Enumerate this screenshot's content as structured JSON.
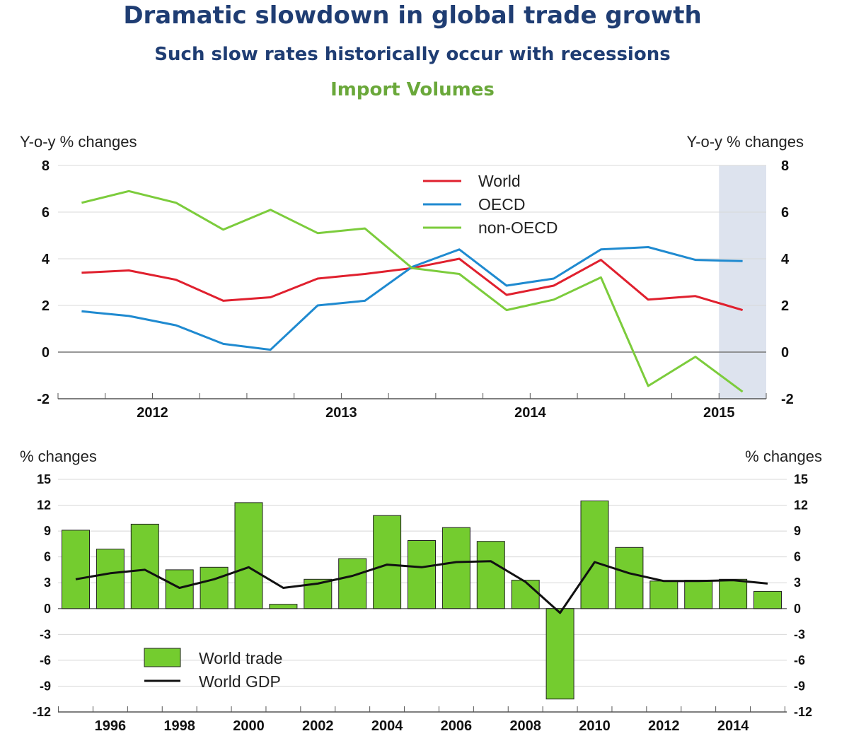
{
  "header": {
    "title": "Dramatic slowdown in global trade growth",
    "subtitle": "Such slow rates historically occur with recessions",
    "section_title": "Import Volumes"
  },
  "colors": {
    "world": "#e0202e",
    "oecd": "#1f8ad0",
    "non_oecd": "#7ccc3c",
    "bar_fill": "#74cc2f",
    "gdp_line": "#111111",
    "shade": "#dde3ee",
    "grid": "#d8d8d8"
  },
  "chart_data": [
    {
      "type": "line",
      "ylabel_left": "Y-o-y % changes",
      "ylabel_right": "Y-o-y % changes",
      "ylim": [
        -2,
        8
      ],
      "yticks": [
        "-2",
        "0",
        "2",
        "4",
        "6",
        "8"
      ],
      "xlim": [
        2011.5,
        2015.25
      ],
      "xticks": [
        {
          "label": "2012",
          "x": 2012.0
        },
        {
          "label": "2013",
          "x": 2013.0
        },
        {
          "label": "2014",
          "x": 2014.0
        },
        {
          "label": "2015",
          "x": 2015.0
        }
      ],
      "shaded_range": [
        2015.0,
        2015.25
      ],
      "grid": true,
      "legend_position": "top-center",
      "x": [
        2011.625,
        2011.875,
        2012.125,
        2012.375,
        2012.625,
        2012.875,
        2013.125,
        2013.375,
        2013.625,
        2013.875,
        2014.125,
        2014.375,
        2014.625,
        2014.875,
        2015.125
      ],
      "series": [
        {
          "name": "World",
          "color_key": "world",
          "values": [
            3.4,
            3.5,
            3.1,
            2.2,
            2.35,
            3.15,
            3.35,
            3.6,
            4.0,
            2.45,
            2.85,
            3.95,
            2.25,
            2.4,
            1.8
          ]
        },
        {
          "name": "OECD",
          "color_key": "oecd",
          "values": [
            1.75,
            1.55,
            1.15,
            0.35,
            0.1,
            2.0,
            2.2,
            3.65,
            4.4,
            2.85,
            3.15,
            4.4,
            4.5,
            3.95,
            3.9
          ]
        },
        {
          "name": "non-OECD",
          "color_key": "non_oecd",
          "values": [
            6.4,
            6.9,
            6.4,
            5.25,
            6.1,
            5.1,
            5.3,
            3.6,
            3.35,
            1.8,
            2.25,
            3.2,
            -1.45,
            -0.2,
            -1.7
          ]
        }
      ]
    },
    {
      "type": "bar",
      "ylabel_left": "% changes",
      "ylabel_right": "% changes",
      "ylim": [
        -12,
        15
      ],
      "yticks": [
        "-12",
        "-9",
        "-6",
        "-3",
        "0",
        "3",
        "6",
        "9",
        "12",
        "15"
      ],
      "categories": [
        "1995",
        "1996",
        "1997",
        "1998",
        "1999",
        "2000",
        "2001",
        "2002",
        "2003",
        "2004",
        "2005",
        "2006",
        "2007",
        "2008",
        "2009",
        "2010",
        "2011",
        "2012",
        "2013",
        "2014",
        "2015"
      ],
      "xtick_labels": [
        "1996",
        "1998",
        "2000",
        "2002",
        "2004",
        "2006",
        "2008",
        "2010",
        "2012",
        "2014"
      ],
      "grid": true,
      "legend_position": "bottom-left",
      "series": [
        {
          "name": "World trade",
          "kind": "bar",
          "color_key": "bar_fill",
          "values": [
            9.1,
            6.9,
            9.8,
            4.5,
            4.8,
            12.3,
            0.5,
            3.4,
            5.8,
            10.8,
            7.9,
            9.4,
            7.8,
            3.3,
            -10.5,
            12.5,
            7.1,
            3.2,
            3.3,
            3.4,
            2.0
          ]
        },
        {
          "name": "World GDP",
          "kind": "line",
          "color_key": "gdp_line",
          "values": [
            3.4,
            4.1,
            4.5,
            2.4,
            3.4,
            4.8,
            2.4,
            2.9,
            3.8,
            5.1,
            4.8,
            5.4,
            5.5,
            3.1,
            -0.5,
            5.4,
            4.1,
            3.2,
            3.2,
            3.3,
            2.9
          ]
        }
      ]
    }
  ]
}
